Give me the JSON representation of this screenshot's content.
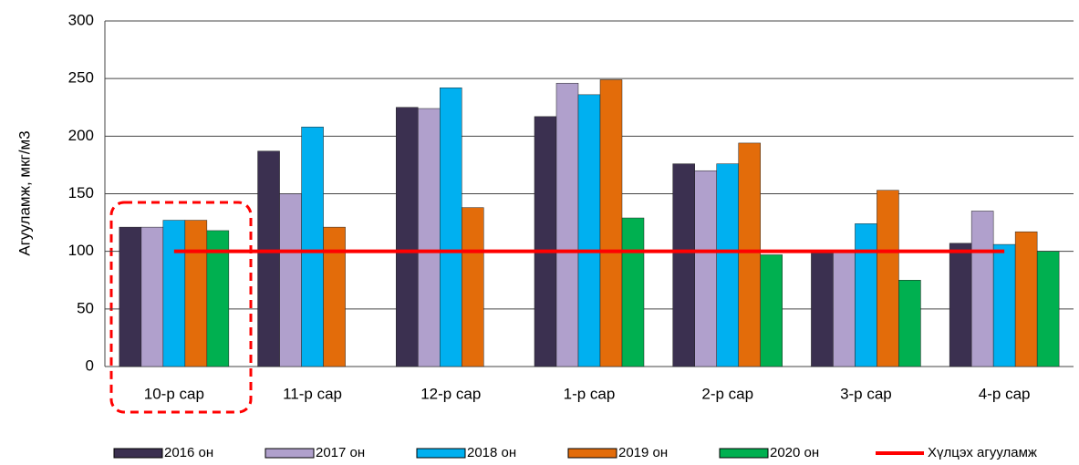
{
  "chart_data": {
    "type": "bar",
    "y_label": "Агууламж, мкг/м3",
    "categories": [
      "10-р сар",
      "11-р сар",
      "12-р сар",
      "1-р сар",
      "2-р сар",
      "3-р сар",
      "4-р сар"
    ],
    "series": [
      {
        "name": "2016 он",
        "color": "#3b3050",
        "values": [
          121,
          187,
          225,
          217,
          176,
          101,
          107
        ]
      },
      {
        "name": "2017 он",
        "color": "#b0a0cc",
        "values": [
          121,
          150,
          224,
          246,
          170,
          100,
          135
        ]
      },
      {
        "name": "2018 он",
        "color": "#00b0f0",
        "values": [
          127,
          208,
          242,
          236,
          176,
          124,
          106
        ]
      },
      {
        "name": "2019 он",
        "color": "#e36c0a",
        "values": [
          127,
          121,
          138,
          249,
          194,
          153,
          117
        ]
      },
      {
        "name": "2020 он",
        "color": "#00b050",
        "values": [
          118,
          null,
          null,
          129,
          97,
          75,
          100
        ]
      },
      {
        "name": "Хүлцэх агууламж",
        "color": "#ff0000",
        "type": "line",
        "values": [
          100,
          100,
          100,
          100,
          100,
          100,
          100
        ]
      }
    ],
    "ylim": [
      0,
      300
    ],
    "yticks": [
      0,
      50,
      100,
      150,
      200,
      250,
      300
    ],
    "grid": true,
    "legend": "bottom"
  }
}
